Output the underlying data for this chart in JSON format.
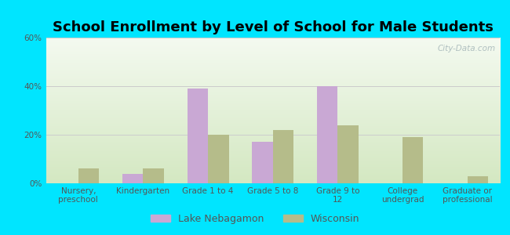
{
  "title": "School Enrollment by Level of School for Male Students",
  "categories": [
    "Nursery,\npreschool",
    "Kindergarten",
    "Grade 1 to 4",
    "Grade 5 to 8",
    "Grade 9 to\n12",
    "College\nundergrad",
    "Graduate or\nprofessional"
  ],
  "lake_values": [
    0,
    4,
    39,
    17,
    40,
    0,
    0
  ],
  "wi_values": [
    6,
    6,
    20,
    22,
    24,
    19,
    3
  ],
  "lake_color": "#c9a8d4",
  "wi_color": "#b5bc8a",
  "ylim": [
    0,
    60
  ],
  "yticks": [
    0,
    20,
    40,
    60
  ],
  "ytick_labels": [
    "0%",
    "20%",
    "40%",
    "60%"
  ],
  "background_outer": "#00e5ff",
  "background_inner_bottom": "#d4e8c2",
  "background_inner_top": "#f4faf0",
  "grid_color": "#cccccc",
  "bar_width": 0.32,
  "legend_lake": "Lake Nebagamon",
  "legend_wi": "Wisconsin",
  "title_fontsize": 13,
  "tick_fontsize": 7.5,
  "legend_fontsize": 9,
  "tick_color": "#555555",
  "watermark": "City-Data.com"
}
